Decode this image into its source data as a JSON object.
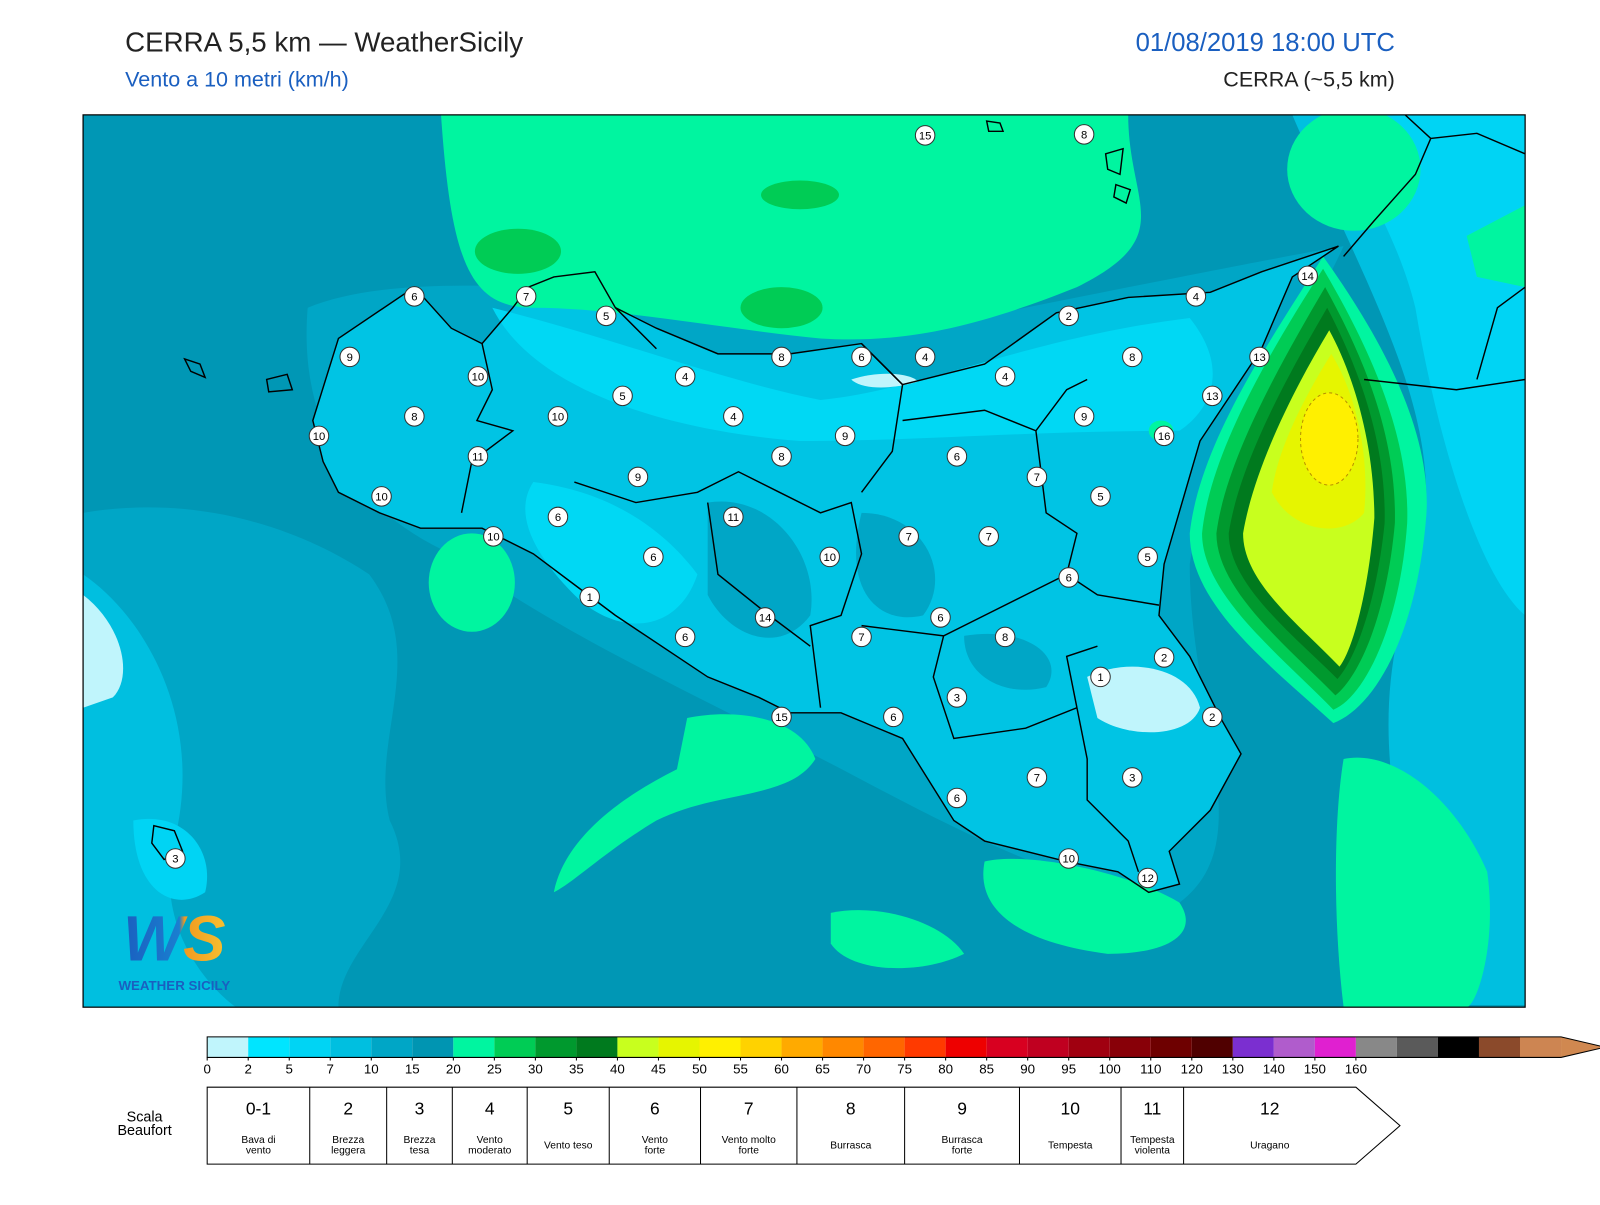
{
  "header": {
    "title": "CERRA 5,5 km — WeatherSicily",
    "subtitle": "Vento a 10 metri (km/h)",
    "date": "01/08/2019 18:00 UTC",
    "model": "CERRA (~5,5 km)"
  },
  "logo": {
    "mark": "WS",
    "text": "WEATHER SICILY"
  },
  "stations": [
    15,
    8,
    6,
    7,
    5,
    9,
    8,
    6,
    4,
    2,
    4,
    14,
    13,
    8,
    10,
    4,
    4,
    5,
    13,
    8,
    10,
    4,
    9,
    10,
    9,
    16,
    11,
    8,
    6,
    9,
    7,
    10,
    5,
    6,
    11,
    10,
    7,
    7,
    6,
    10,
    5,
    6,
    1,
    14,
    6,
    6,
    7,
    8,
    2,
    1,
    3,
    15,
    6,
    2,
    7,
    3,
    6,
    10,
    12,
    3
  ],
  "colorbar": {
    "ticks": [
      0,
      2,
      5,
      7,
      10,
      15,
      20,
      25,
      30,
      35,
      40,
      45,
      50,
      55,
      60,
      65,
      70,
      75,
      80,
      85,
      90,
      95,
      100,
      110,
      120,
      130,
      140,
      150,
      160
    ],
    "colors": [
      "#c0f5fc",
      "#00e5ff",
      "#00d4f4",
      "#00bfe0",
      "#00a6c6",
      "#0095b2",
      "#00f5a0",
      "#00cc55",
      "#00992e",
      "#007a1e",
      "#c8ff1e",
      "#e6f500",
      "#fff000",
      "#ffd200",
      "#ffaa00",
      "#ff8800",
      "#ff6600",
      "#ff3a00",
      "#ee0000",
      "#d80020",
      "#c00020",
      "#a00010",
      "#880008",
      "#6e0000",
      "#500000",
      "#7b2fd0",
      "#b05ccc",
      "#e020d0",
      "#888888",
      "#5a5a5a",
      "#000000",
      "#8b4a2b",
      "#cd8552"
    ],
    "over_color": "#d08850"
  },
  "beaufort": {
    "label": [
      "Scala",
      "Beaufort"
    ],
    "levels": [
      {
        "force": "0-1",
        "desc": [
          "Bava di",
          "vento"
        ]
      },
      {
        "force": "2",
        "desc": [
          "Brezza",
          "leggera"
        ]
      },
      {
        "force": "3",
        "desc": [
          "Brezza",
          "tesa"
        ]
      },
      {
        "force": "4",
        "desc": [
          "Vento",
          "moderato"
        ]
      },
      {
        "force": "5",
        "desc": [
          "Vento teso"
        ]
      },
      {
        "force": "6",
        "desc": [
          "Vento",
          "forte"
        ]
      },
      {
        "force": "7",
        "desc": [
          "Vento molto",
          "forte"
        ]
      },
      {
        "force": "8",
        "desc": [
          "Burrasca"
        ]
      },
      {
        "force": "9",
        "desc": [
          "Burrasca",
          "forte"
        ]
      },
      {
        "force": "10",
        "desc": [
          "Tempesta"
        ]
      },
      {
        "force": "11",
        "desc": [
          "Tempesta",
          "violenta"
        ]
      },
      {
        "force": "12",
        "desc": [
          "Uragano"
        ]
      }
    ]
  }
}
